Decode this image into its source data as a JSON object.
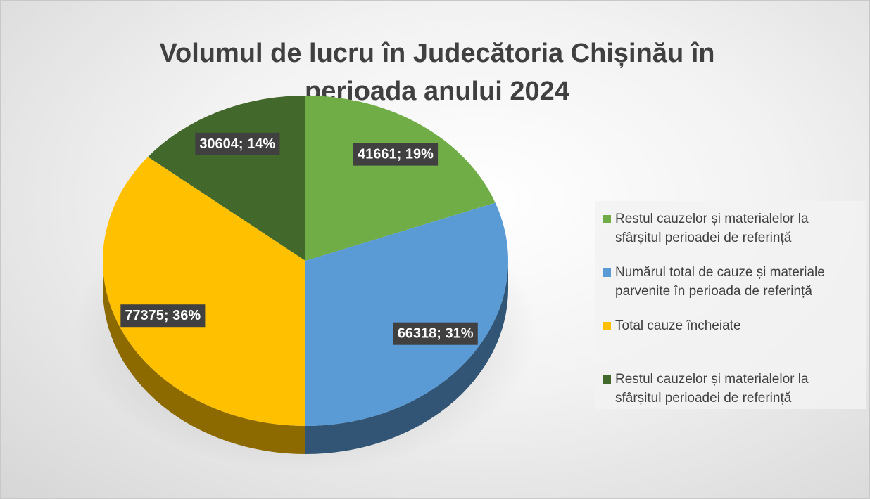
{
  "chart_data": {
    "type": "pie",
    "title": "Volumul de lucru în Judecătoria Chișinău în perioada anului 2024",
    "categories": [
      "Restul cauzelor și materialelor la sfârșitul perioadei de referință",
      "Numărul total de cauze și materiale parvenite în perioada de referință",
      "Total cauze încheiate",
      "Restul cauzelor și materialelor la sfârșitul perioadei de referință"
    ],
    "values": [
      41661,
      66318,
      77375,
      30604
    ],
    "value_labels": [
      "41661; 19%",
      "66318; 31%",
      "77375; 36%",
      "30604; 14%"
    ],
    "colors": [
      "#70ad47",
      "#5b9bd5",
      "#ffc000",
      "#43682b"
    ],
    "legend": "right"
  }
}
